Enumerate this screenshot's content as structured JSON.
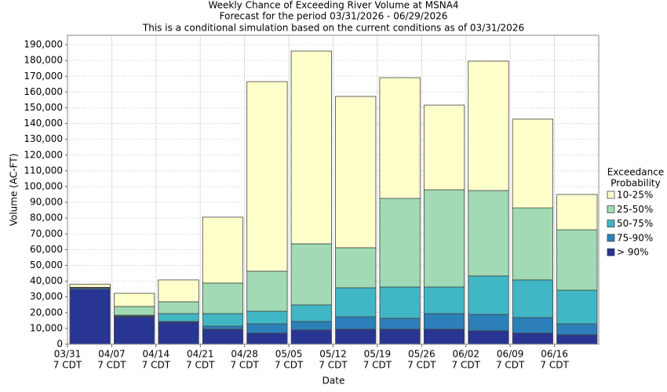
{
  "chart_data": {
    "type": "stacked_bar",
    "title": "Weekly Chance of Exceeding River Volume at MSNA4",
    "subtitles": [
      "Forecast for the period 03/31/2026 - 06/29/2026",
      "This is a conditional simulation based on the current conditions as of 03/31/2026"
    ],
    "x_label": "Date",
    "y_label": "Volume (AC-FT)",
    "legend_title": [
      "Exceedance",
      "Probability"
    ],
    "categories": [
      [
        "03/31",
        "7 CDT"
      ],
      [
        "04/07",
        "7 CDT"
      ],
      [
        "04/14",
        "7 CDT"
      ],
      [
        "04/21",
        "7 CDT"
      ],
      [
        "04/28",
        "7 CDT"
      ],
      [
        "05/05",
        "7 CDT"
      ],
      [
        "05/12",
        "7 CDT"
      ],
      [
        "05/19",
        "7 CDT"
      ],
      [
        "05/26",
        "7 CDT"
      ],
      [
        "06/02",
        "7 CDT"
      ],
      [
        "06/09",
        "7 CDT"
      ],
      [
        "06/16",
        "7 CDT"
      ]
    ],
    "series": [
      {
        "name": "> 90%",
        "color": "#283593",
        "values": [
          34800,
          17400,
          13900,
          9500,
          7000,
          9000,
          9500,
          9500,
          9500,
          8500,
          7000,
          6000
        ]
      },
      {
        "name": "75-90%",
        "color": "#2c7fb8",
        "values": [
          800,
          500,
          500,
          1900,
          5900,
          5400,
          7900,
          6900,
          9900,
          10400,
          9900,
          6900
        ]
      },
      {
        "name": "50-75%",
        "color": "#41b6c4",
        "values": [
          200,
          500,
          5000,
          8000,
          8000,
          10500,
          18400,
          19900,
          16900,
          24400,
          23900,
          21400
        ]
      },
      {
        "name": "25-50%",
        "color": "#a1dab4",
        "values": [
          300,
          5500,
          7500,
          19400,
          25400,
          38800,
          25400,
          56200,
          61700,
          54200,
          45700,
          38300
        ]
      },
      {
        "name": "10-25%",
        "color": "#ffffcc",
        "values": [
          2000,
          8400,
          13900,
          41800,
          120300,
          122300,
          96000,
          76600,
          53700,
          82100,
          56300,
          22400
        ]
      }
    ],
    "ylim": [
      0,
      196000
    ],
    "yticks": [
      0,
      {
        "value": 10000,
        "label": "10,000"
      },
      {
        "value": 20000,
        "label": "20,000"
      },
      {
        "value": 30000,
        "label": "30,000"
      },
      {
        "value": 40000,
        "label": "40,000"
      },
      {
        "value": 50000,
        "label": "50,000"
      },
      {
        "value": 60000,
        "label": "60,000"
      },
      {
        "value": 70000,
        "label": "70,000"
      },
      {
        "value": 80000,
        "label": "80,000"
      },
      {
        "value": 90000,
        "label": "90,000"
      },
      {
        "value": 100000,
        "label": "100,000"
      },
      {
        "value": 110000,
        "label": "110,000"
      },
      {
        "value": 120000,
        "label": "120,000"
      },
      {
        "value": 130000,
        "label": "130,000"
      },
      {
        "value": 140000,
        "label": "140,000"
      },
      {
        "value": 150000,
        "label": "150,000"
      },
      {
        "value": 160000,
        "label": "160,000"
      },
      {
        "value": 170000,
        "label": "170,000"
      },
      {
        "value": 180000,
        "label": "180,000"
      },
      {
        "value": 190000,
        "label": "190,000"
      }
    ],
    "grid": true
  }
}
